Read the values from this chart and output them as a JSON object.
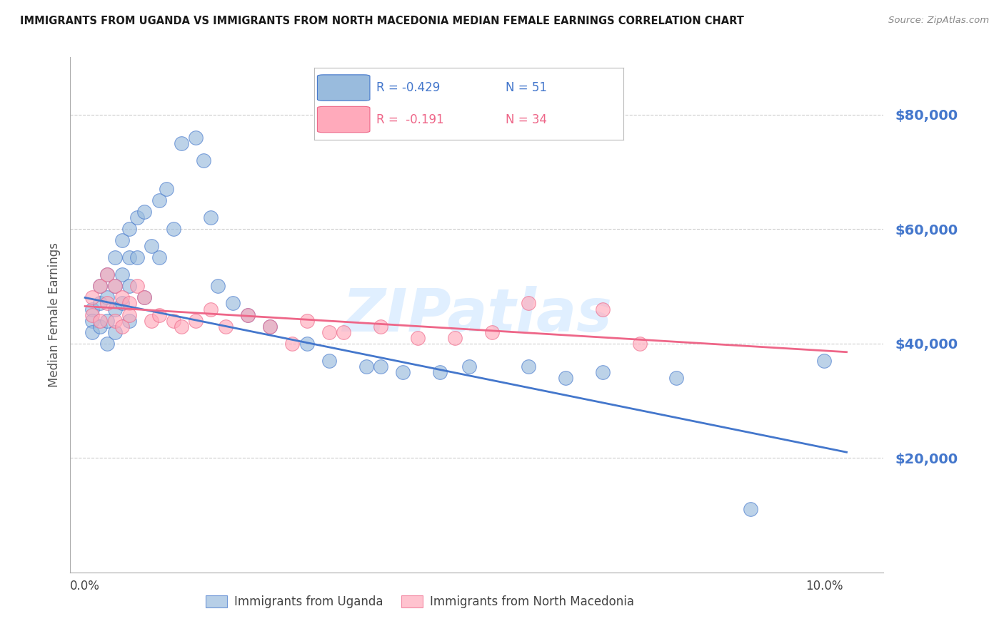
{
  "title": "IMMIGRANTS FROM UGANDA VS IMMIGRANTS FROM NORTH MACEDONIA MEDIAN FEMALE EARNINGS CORRELATION CHART",
  "source": "Source: ZipAtlas.com",
  "ylabel": "Median Female Earnings",
  "ytick_labels": [
    "$20,000",
    "$40,000",
    "$60,000",
    "$80,000"
  ],
  "ytick_values": [
    20000,
    40000,
    60000,
    80000
  ],
  "ylim": [
    0,
    90000
  ],
  "xlim": [
    -0.002,
    0.108
  ],
  "xtick_positions": [
    0.0,
    0.02,
    0.04,
    0.06,
    0.08,
    0.1
  ],
  "xtick_labels": [
    "0.0%",
    "",
    "",
    "",
    "",
    "10.0%"
  ],
  "blue_color": "#99BBDD",
  "pink_color": "#FFAABB",
  "line_blue": "#4477CC",
  "line_pink": "#EE6688",
  "text_blue": "#4477CC",
  "watermark": "ZIPatlas",
  "watermark_color": "#DDEEFF",
  "legend_r1": "R = -0.429",
  "legend_n1": "N = 51",
  "legend_r2": "R =  -0.191",
  "legend_n2": "N = 34",
  "uganda_x": [
    0.001,
    0.001,
    0.001,
    0.002,
    0.002,
    0.002,
    0.003,
    0.003,
    0.003,
    0.003,
    0.004,
    0.004,
    0.004,
    0.004,
    0.005,
    0.005,
    0.005,
    0.006,
    0.006,
    0.006,
    0.006,
    0.007,
    0.007,
    0.008,
    0.008,
    0.009,
    0.01,
    0.01,
    0.011,
    0.012,
    0.013,
    0.015,
    0.016,
    0.017,
    0.018,
    0.02,
    0.022,
    0.025,
    0.03,
    0.033,
    0.038,
    0.04,
    0.043,
    0.048,
    0.052,
    0.06,
    0.065,
    0.07,
    0.08,
    0.09,
    0.1
  ],
  "uganda_y": [
    46000,
    44000,
    42000,
    50000,
    47000,
    43000,
    52000,
    48000,
    44000,
    40000,
    55000,
    50000,
    46000,
    42000,
    58000,
    52000,
    47000,
    60000,
    55000,
    50000,
    44000,
    62000,
    55000,
    63000,
    48000,
    57000,
    65000,
    55000,
    67000,
    60000,
    75000,
    76000,
    72000,
    62000,
    50000,
    47000,
    45000,
    43000,
    40000,
    37000,
    36000,
    36000,
    35000,
    35000,
    36000,
    36000,
    34000,
    35000,
    34000,
    11000,
    37000
  ],
  "macedonia_x": [
    0.001,
    0.001,
    0.002,
    0.002,
    0.003,
    0.003,
    0.004,
    0.004,
    0.005,
    0.005,
    0.006,
    0.006,
    0.007,
    0.008,
    0.009,
    0.01,
    0.012,
    0.013,
    0.015,
    0.017,
    0.019,
    0.022,
    0.025,
    0.028,
    0.03,
    0.033,
    0.035,
    0.04,
    0.045,
    0.05,
    0.055,
    0.06,
    0.07,
    0.075
  ],
  "macedonia_y": [
    48000,
    45000,
    50000,
    44000,
    52000,
    47000,
    50000,
    44000,
    48000,
    43000,
    47000,
    45000,
    50000,
    48000,
    44000,
    45000,
    44000,
    43000,
    44000,
    46000,
    43000,
    45000,
    43000,
    40000,
    44000,
    42000,
    42000,
    43000,
    41000,
    41000,
    42000,
    47000,
    46000,
    40000
  ],
  "blue_line_x": [
    0.0,
    0.103
  ],
  "blue_line_y": [
    48000,
    21000
  ],
  "pink_line_x": [
    0.0,
    0.103
  ],
  "pink_line_y": [
    46500,
    38500
  ]
}
